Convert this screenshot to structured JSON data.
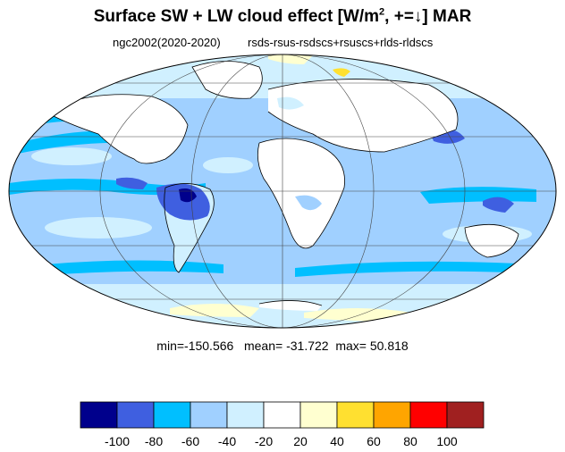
{
  "title": {
    "main": "Surface SW + LW cloud effect [W/m",
    "sup": "2",
    "rest": ", +=↓]  MAR"
  },
  "subtitle": {
    "left": "ngc2002(2020-2020)",
    "right": "rsds-rsus-rsdscs+rsuscs+rlds-rldscs"
  },
  "stats": {
    "min_label": "min=",
    "min": "-150.566",
    "mean_label": "mean=",
    "mean": "-31.722",
    "max_label": "max=",
    "max": "50.818"
  },
  "colorbar": {
    "colors": [
      "#00008c",
      "#3f5fe0",
      "#00bfff",
      "#a0d0ff",
      "#d0f0ff",
      "#ffffff",
      "#ffffd0",
      "#ffe030",
      "#ffa500",
      "#ff0000",
      "#a02020"
    ],
    "tick_labels": [
      "-100",
      "-80",
      "-60",
      "-40",
      "-20",
      "20",
      "40",
      "60",
      "80",
      "100"
    ]
  },
  "map": {
    "projection": "Mollweide",
    "grid": true,
    "ocean_color": "#a0d0ff",
    "land_color": "#ffffff"
  }
}
